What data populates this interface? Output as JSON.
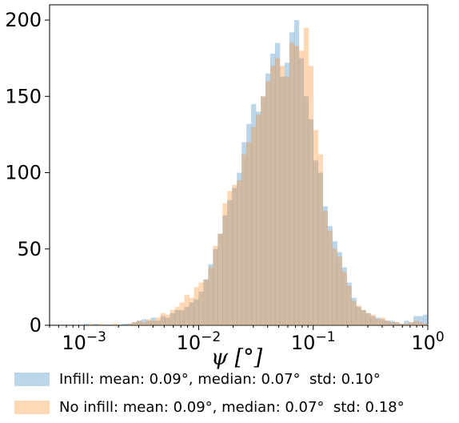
{
  "chart_data": {
    "type": "bar",
    "xscale": "log",
    "xlim": [
      0.0005,
      1.0
    ],
    "ylim": [
      0,
      210
    ],
    "xlabel": "ψ [°]",
    "xticks": [
      {
        "value": 0.001,
        "base": "10",
        "exp": "−3"
      },
      {
        "value": 0.01,
        "base": "10",
        "exp": "−2"
      },
      {
        "value": 0.1,
        "base": "10",
        "exp": "−1"
      },
      {
        "value": 1.0,
        "base": "10",
        "exp": "0"
      }
    ],
    "yticks": [
      0,
      50,
      100,
      150,
      200
    ],
    "bin_edges_log10": [
      -3.0,
      -2.9583,
      -2.9167,
      -2.875,
      -2.8333,
      -2.7917,
      -2.75,
      -2.7083,
      -2.6667,
      -2.625,
      -2.5833,
      -2.5417,
      -2.5,
      -2.4583,
      -2.4167,
      -2.375,
      -2.3333,
      -2.2917,
      -2.25,
      -2.2083,
      -2.1667,
      -2.125,
      -2.0833,
      -2.0417,
      -2.0,
      -1.9583,
      -1.9167,
      -1.875,
      -1.8333,
      -1.7917,
      -1.75,
      -1.7083,
      -1.6667,
      -1.625,
      -1.5833,
      -1.5417,
      -1.5,
      -1.4583,
      -1.4167,
      -1.375,
      -1.3333,
      -1.2917,
      -1.25,
      -1.2083,
      -1.1667,
      -1.125,
      -1.0833,
      -1.0417,
      -1.0,
      -0.9583,
      -0.9167,
      -0.875,
      -0.8333,
      -0.7917,
      -0.75,
      -0.7083,
      -0.6667,
      -0.625,
      -0.5833,
      -0.5417,
      -0.5,
      -0.4583,
      -0.4167,
      -0.375,
      -0.3333,
      -0.2917,
      -0.25,
      -0.2083,
      -0.1667,
      -0.125,
      -0.0833,
      -0.0417,
      0.0
    ],
    "series": [
      {
        "name": "Infill: mean: 0.09°, median: 0.07°  std: 0.10°",
        "color": "#1f77b4",
        "alpha": 0.3,
        "values": [
          1,
          0,
          1,
          0,
          0,
          0,
          0,
          0,
          1,
          1,
          2,
          3,
          4,
          3,
          5,
          3,
          6,
          5,
          8,
          10,
          10,
          12,
          15,
          17,
          22,
          30,
          40,
          50,
          60,
          72,
          82,
          90,
          100,
          120,
          132,
          145,
          140,
          150,
          165,
          178,
          185,
          163,
          172,
          192,
          200,
          175,
          150,
          135,
          108,
          100,
          78,
          65,
          55,
          48,
          38,
          28,
          18,
          12,
          10,
          8,
          6,
          5,
          4,
          3,
          3,
          2,
          1,
          3,
          2,
          6,
          6,
          7
        ]
      },
      {
        "name": "No infill: mean: 0.09°, median: 0.07°  std: 0.18°",
        "color": "#ff7f0e",
        "alpha": 0.3,
        "values": [
          0,
          1,
          0,
          1,
          0,
          0,
          1,
          0,
          0,
          1,
          2,
          3,
          2,
          4,
          3,
          5,
          8,
          7,
          10,
          12,
          15,
          20,
          18,
          25,
          28,
          30,
          38,
          52,
          60,
          80,
          88,
          92,
          95,
          112,
          120,
          130,
          138,
          150,
          160,
          170,
          175,
          170,
          163,
          185,
          183,
          180,
          195,
          170,
          128,
          112,
          75,
          62,
          50,
          45,
          35,
          26,
          16,
          13,
          10,
          8,
          7,
          4,
          5,
          3,
          2,
          2,
          1,
          1,
          2,
          3,
          2,
          1
        ]
      }
    ]
  }
}
